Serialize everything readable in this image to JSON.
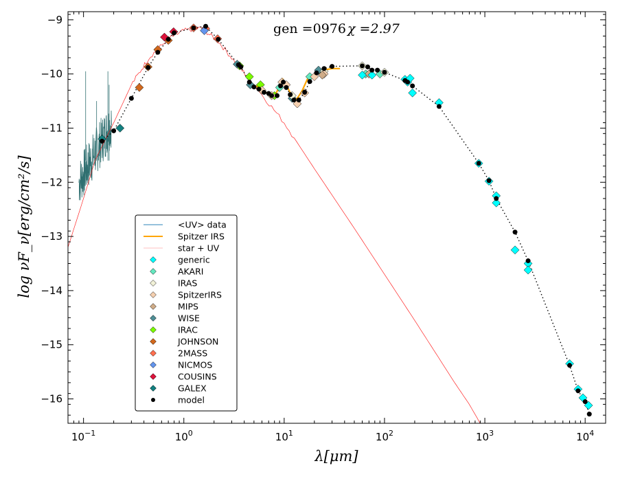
{
  "chart_data": {
    "type": "scatter",
    "title": "",
    "annotation_gen": "gen =0976",
    "annotation_chi": "χ =2.97",
    "xlabel": "λ[μm]",
    "ylabel": "log νF_ν[erg/cm²/s]",
    "xscale": "log",
    "xlim": [
      0.07,
      16000
    ],
    "ylim": [
      -16.45,
      -8.85
    ],
    "x_ticks": [
      {
        "v": 0.1,
        "base": "10",
        "exp": "−1"
      },
      {
        "v": 1,
        "base": "10",
        "exp": "0"
      },
      {
        "v": 10,
        "base": "10",
        "exp": "1"
      },
      {
        "v": 100,
        "base": "10",
        "exp": "2"
      },
      {
        "v": 1000,
        "base": "10",
        "exp": "3"
      },
      {
        "v": 10000,
        "base": "10",
        "exp": "4"
      }
    ],
    "y_ticks": [
      {
        "v": -9,
        "label": "−9"
      },
      {
        "v": -10,
        "label": "−10"
      },
      {
        "v": -11,
        "label": "−11"
      },
      {
        "v": -12,
        "label": "−12"
      },
      {
        "v": -13,
        "label": "−13"
      },
      {
        "v": -14,
        "label": "−14"
      },
      {
        "v": -15,
        "label": "−15"
      },
      {
        "v": -16,
        "label": "−16"
      }
    ],
    "legend": [
      {
        "label": "<UV> data",
        "kind": "line",
        "color": "#2b83ba"
      },
      {
        "label": "Spitzer IRS",
        "kind": "line",
        "color": "#ffa500"
      },
      {
        "label": "star + UV",
        "kind": "line",
        "color": "#ffc0c0"
      },
      {
        "label": "generic",
        "kind": "diamond",
        "color": "#00ffff"
      },
      {
        "label": "AKARI",
        "kind": "diamond",
        "color": "#66e8c0"
      },
      {
        "label": "IRAS",
        "kind": "diamond",
        "color": "#f2f2d8"
      },
      {
        "label": "SpitzerIRS",
        "kind": "diamond",
        "color": "#f5d0b0"
      },
      {
        "label": "MIPS",
        "kind": "diamond",
        "color": "#cfac88"
      },
      {
        "label": "WISE",
        "kind": "diamond",
        "color": "#4f8f96"
      },
      {
        "label": "IRAC",
        "kind": "diamond",
        "color": "#7cfc00"
      },
      {
        "label": "JOHNSON",
        "kind": "diamond",
        "color": "#d2691e"
      },
      {
        "label": "2MASS",
        "kind": "diamond",
        "color": "#ff7050"
      },
      {
        "label": "NICMOS",
        "kind": "diamond",
        "color": "#6495ed"
      },
      {
        "label": "COUSINS",
        "kind": "diamond",
        "color": "#dc143c"
      },
      {
        "label": "GALEX",
        "kind": "diamond",
        "color": "#138080"
      },
      {
        "label": "model",
        "kind": "dot",
        "color": "#000000"
      }
    ],
    "series": [
      {
        "name": "GALEX",
        "color": "#138080",
        "points": [
          [
            0.153,
            -11.2
          ],
          [
            0.231,
            -11.0
          ]
        ]
      },
      {
        "name": "JOHNSON",
        "color": "#d2691e",
        "points": [
          [
            0.36,
            -10.25
          ],
          [
            0.44,
            -9.87
          ],
          [
            0.55,
            -9.55
          ],
          [
            0.7,
            -9.38
          ]
        ]
      },
      {
        "name": "COUSINS",
        "color": "#dc143c",
        "points": [
          [
            0.64,
            -9.32
          ],
          [
            0.79,
            -9.22
          ]
        ]
      },
      {
        "name": "2MASS",
        "color": "#ff7050",
        "points": [
          [
            1.25,
            -9.15
          ],
          [
            1.65,
            -9.16
          ],
          [
            2.17,
            -9.35
          ]
        ]
      },
      {
        "name": "NICMOS",
        "color": "#6495ed",
        "points": [
          [
            1.6,
            -9.2
          ]
        ]
      },
      {
        "name": "IRAC",
        "color": "#7cfc00",
        "points": [
          [
            3.6,
            -9.85
          ],
          [
            4.5,
            -10.05
          ],
          [
            5.8,
            -10.2
          ],
          [
            8.0,
            -10.4
          ]
        ]
      },
      {
        "name": "WISE",
        "color": "#4f8f96",
        "points": [
          [
            3.4,
            -9.82
          ],
          [
            4.6,
            -10.2
          ],
          [
            12.0,
            -10.45
          ],
          [
            22.0,
            -9.93
          ]
        ]
      },
      {
        "name": "AKARI",
        "color": "#66e8c0",
        "points": [
          [
            9.0,
            -10.25
          ],
          [
            18.0,
            -10.05
          ],
          [
            65.0,
            -10.0
          ],
          [
            90.0,
            -10.0
          ]
        ]
      },
      {
        "name": "IRAS",
        "color": "#f2f2d8",
        "points": [
          [
            12.0,
            -10.4
          ],
          [
            25.0,
            -9.95
          ],
          [
            60.0,
            -9.85
          ],
          [
            100.0,
            -9.97
          ]
        ]
      },
      {
        "name": "SpitzerIRS",
        "color": "#f5d0b0",
        "points": [
          [
            6.0,
            -10.3
          ],
          [
            7.5,
            -10.4
          ],
          [
            9.5,
            -10.15
          ],
          [
            10.5,
            -10.2
          ],
          [
            13.5,
            -10.55
          ],
          [
            16.0,
            -10.35
          ],
          [
            20.0,
            -10.05
          ],
          [
            25.0,
            -10.0
          ]
        ]
      },
      {
        "name": "MIPS",
        "color": "#cfac88",
        "points": [
          [
            24.0,
            -10.02
          ],
          [
            70.0,
            -10.0
          ]
        ]
      },
      {
        "name": "generic",
        "color": "#00ffff",
        "points": [
          [
            60.0,
            -10.02
          ],
          [
            75.0,
            -10.02
          ],
          [
            160.0,
            -10.1
          ],
          [
            170.0,
            -10.15
          ],
          [
            180.0,
            -10.08
          ],
          [
            190.0,
            -10.35
          ],
          [
            350.0,
            -10.53
          ],
          [
            870.0,
            -11.65
          ],
          [
            1100.0,
            -11.98
          ],
          [
            1300.0,
            -12.25
          ],
          [
            1300.0,
            -12.38
          ],
          [
            2000.0,
            -13.25
          ],
          [
            2700.0,
            -13.5
          ],
          [
            2700.0,
            -13.62
          ],
          [
            7000.0,
            -15.35
          ],
          [
            8500.0,
            -15.82
          ],
          [
            9500.0,
            -15.98
          ],
          [
            10800.0,
            -16.12
          ]
        ]
      }
    ],
    "model": [
      [
        0.153,
        -11.24
      ],
      [
        0.2,
        -11.05
      ],
      [
        0.3,
        -10.45
      ],
      [
        0.44,
        -9.88
      ],
      [
        0.55,
        -9.6
      ],
      [
        0.7,
        -9.36
      ],
      [
        0.8,
        -9.24
      ],
      [
        1.25,
        -9.15
      ],
      [
        1.65,
        -9.12
      ],
      [
        2.2,
        -9.36
      ],
      [
        3.5,
        -9.83
      ],
      [
        3.7,
        -9.87
      ],
      [
        4.5,
        -10.15
      ],
      [
        5.0,
        -10.24
      ],
      [
        5.6,
        -10.28
      ],
      [
        6.3,
        -10.34
      ],
      [
        7.0,
        -10.36
      ],
      [
        7.5,
        -10.4
      ],
      [
        8.5,
        -10.4
      ],
      [
        9.2,
        -10.22
      ],
      [
        9.8,
        -10.15
      ],
      [
        10.5,
        -10.25
      ],
      [
        11.5,
        -10.38
      ],
      [
        12.5,
        -10.48
      ],
      [
        14.0,
        -10.48
      ],
      [
        16.0,
        -10.34
      ],
      [
        18.0,
        -10.14
      ],
      [
        21.0,
        -9.98
      ],
      [
        25.0,
        -9.9
      ],
      [
        30.0,
        -9.86
      ],
      [
        60.0,
        -9.85
      ],
      [
        68.0,
        -9.87
      ],
      [
        75.0,
        -9.93
      ],
      [
        85.0,
        -9.93
      ],
      [
        100.0,
        -9.97
      ],
      [
        160.0,
        -10.12
      ],
      [
        170.0,
        -10.15
      ],
      [
        190.0,
        -10.22
      ],
      [
        350.0,
        -10.6
      ],
      [
        870.0,
        -11.65
      ],
      [
        1100.0,
        -11.97
      ],
      [
        1300.0,
        -12.3
      ],
      [
        2000.0,
        -12.92
      ],
      [
        2700.0,
        -13.45
      ],
      [
        7000.0,
        -15.38
      ],
      [
        8500.0,
        -15.85
      ],
      [
        10000.0,
        -16.05
      ],
      [
        11000.0,
        -16.28
      ]
    ],
    "irs_spectrum": [
      [
        5.2,
        -10.22
      ],
      [
        6.0,
        -10.28
      ],
      [
        7.0,
        -10.38
      ],
      [
        8.0,
        -10.42
      ],
      [
        9.0,
        -10.22
      ],
      [
        9.7,
        -10.1
      ],
      [
        10.5,
        -10.2
      ],
      [
        11.5,
        -10.35
      ],
      [
        12.5,
        -10.48
      ],
      [
        13.5,
        -10.45
      ],
      [
        15.0,
        -10.32
      ],
      [
        17.0,
        -10.1
      ],
      [
        19.0,
        -10.03
      ],
      [
        22.0,
        -9.97
      ],
      [
        26.0,
        -9.92
      ],
      [
        30.0,
        -9.9
      ],
      [
        36.0,
        -9.9
      ]
    ]
  }
}
